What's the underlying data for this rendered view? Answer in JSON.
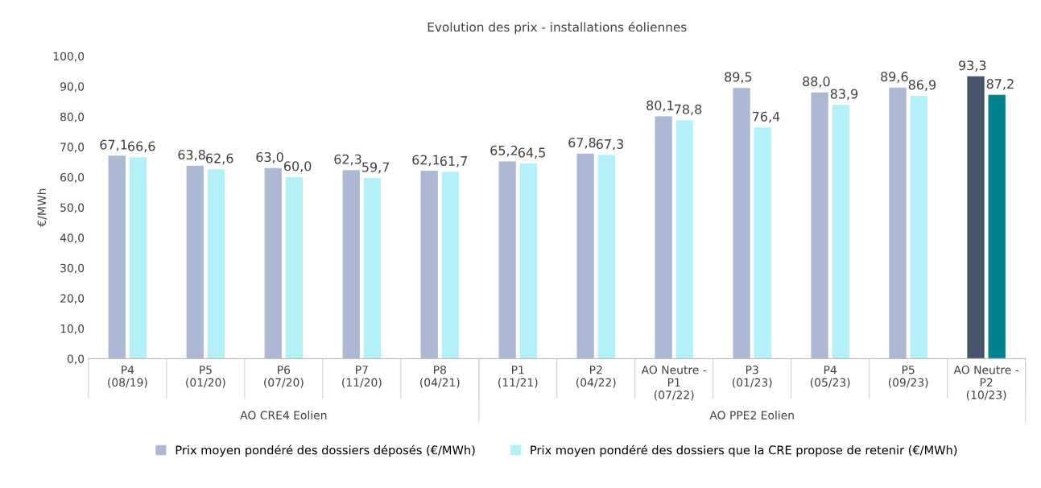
{
  "chart_data": {
    "type": "bar",
    "title": "Evolution des prix - installations éoliennes",
    "ylabel": "€/MWh",
    "categories": [
      "P4\n(08/19)",
      "P5\n(01/20)",
      "P6\n(07/20)",
      "P7\n(11/20)",
      "P8\n(04/21)",
      "P1\n(11/21)",
      "P2\n(04/22)",
      "AO Neutre -\nP1\n(07/22)",
      "P3\n(01/23)",
      "P4\n(05/23)",
      "P5\n(09/23)",
      "AO Neutre -\nP2\n(10/23)"
    ],
    "series": [
      {
        "name": "Prix moyen pondéré des dossiers déposés (€/MWh)",
        "color": "#adb9d4",
        "colors": [
          "#adb9d4",
          "#adb9d4",
          "#adb9d4",
          "#adb9d4",
          "#adb9d4",
          "#adb9d4",
          "#adb9d4",
          "#adb9d4",
          "#adb9d4",
          "#adb9d4",
          "#adb9d4",
          "#44546a"
        ],
        "values": [
          67.1,
          63.8,
          63.0,
          62.3,
          62.1,
          65.2,
          67.8,
          80.1,
          89.5,
          88.0,
          89.6,
          93.3
        ],
        "value_labels": [
          "67,1",
          "63,8",
          "63,0",
          "62,3",
          "62,1",
          "65,2",
          "67,8",
          "80,1",
          "89,5",
          "88,0",
          "89,6",
          "93,3"
        ]
      },
      {
        "name": "Prix moyen pondéré des dossiers que la CRE propose de retenir (€/MWh)",
        "color": "#b3f0f8",
        "colors": [
          "#b3f0f8",
          "#b3f0f8",
          "#b3f0f8",
          "#b3f0f8",
          "#b3f0f8",
          "#b3f0f8",
          "#b3f0f8",
          "#b3f0f8",
          "#b3f0f8",
          "#b3f0f8",
          "#b3f0f8",
          "#00838f"
        ],
        "values": [
          66.6,
          62.6,
          60.0,
          59.7,
          61.7,
          64.5,
          67.3,
          78.8,
          76.4,
          83.9,
          86.9,
          87.2
        ],
        "value_labels": [
          "66,6",
          "62,6",
          "60,0",
          "59,7",
          "61,7",
          "64,5",
          "67,3",
          "78,8",
          "76,4",
          "83,9",
          "86,9",
          "87,2"
        ]
      }
    ],
    "ylim": [
      0,
      100
    ],
    "yticks": [
      {
        "value": 0,
        "label": "0,0"
      },
      {
        "value": 10,
        "label": "10,0"
      },
      {
        "value": 20,
        "label": "20,0"
      },
      {
        "value": 30,
        "label": "30,0"
      },
      {
        "value": 40,
        "label": "40,0"
      },
      {
        "value": 50,
        "label": "50,0"
      },
      {
        "value": 60,
        "label": "60,0"
      },
      {
        "value": 70,
        "label": "70,0"
      },
      {
        "value": 80,
        "label": "80,0"
      },
      {
        "value": 90,
        "label": "90,0"
      },
      {
        "value": 100,
        "label": "100,0"
      }
    ],
    "annotations": [
      "AO CRE4 Eolien",
      "AO PPE2 Eolien"
    ],
    "grid": false,
    "legend": "bottom"
  }
}
